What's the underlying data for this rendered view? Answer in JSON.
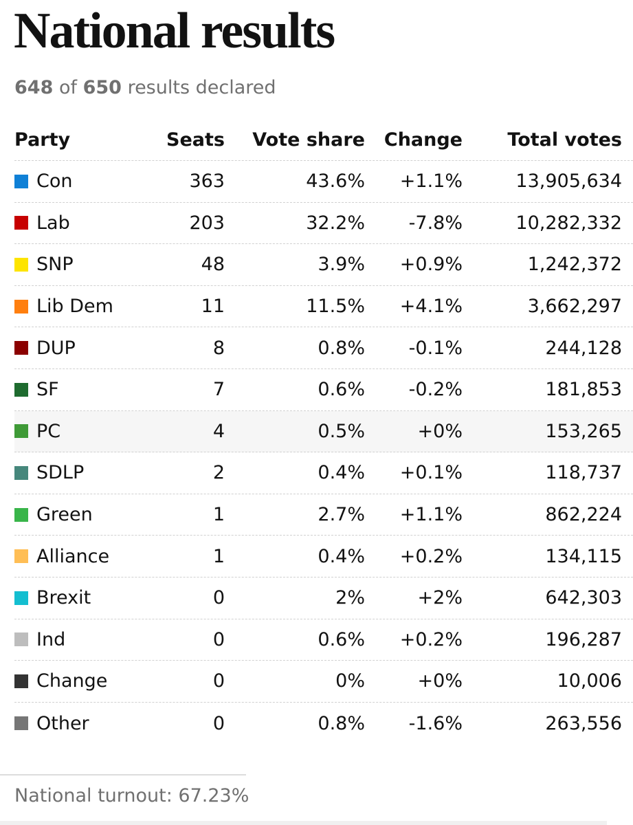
{
  "title": "National results",
  "declared": {
    "count": "648",
    "of_text": "of",
    "total": "650",
    "suffix": "results declared"
  },
  "table": {
    "headers": {
      "party": "Party",
      "seats": "Seats",
      "vote_share": "Vote share",
      "change": "Change",
      "total_votes": "Total votes"
    },
    "rows": [
      {
        "party": "Con",
        "color": "#0f80d6",
        "seats": "363",
        "vote_share": "43.6%",
        "change": "+1.1%",
        "total_votes": "13,905,634"
      },
      {
        "party": "Lab",
        "color": "#c70000",
        "seats": "203",
        "vote_share": "32.2%",
        "change": "-7.8%",
        "total_votes": "10,282,332"
      },
      {
        "party": "SNP",
        "color": "#fde400",
        "seats": "48",
        "vote_share": "3.9%",
        "change": "+0.9%",
        "total_votes": "1,242,372"
      },
      {
        "party": "Lib Dem",
        "color": "#ff7f0f",
        "seats": "11",
        "vote_share": "11.5%",
        "change": "+4.1%",
        "total_votes": "3,662,297"
      },
      {
        "party": "DUP",
        "color": "#8b0000",
        "seats": "8",
        "vote_share": "0.8%",
        "change": "-0.1%",
        "total_votes": "244,128"
      },
      {
        "party": "SF",
        "color": "#1e6b2f",
        "seats": "7",
        "vote_share": "0.6%",
        "change": "-0.2%",
        "total_votes": "181,853"
      },
      {
        "party": "PC",
        "color": "#3f9a37",
        "seats": "4",
        "vote_share": "0.5%",
        "change": "+0%",
        "total_votes": "153,265"
      },
      {
        "party": "SDLP",
        "color": "#46877c",
        "seats": "2",
        "vote_share": "0.4%",
        "change": "+0.1%",
        "total_votes": "118,737"
      },
      {
        "party": "Green",
        "color": "#39b54a",
        "seats": "1",
        "vote_share": "2.7%",
        "change": "+1.1%",
        "total_votes": "862,224"
      },
      {
        "party": "Alliance",
        "color": "#ffbe55",
        "seats": "1",
        "vote_share": "0.4%",
        "change": "+0.2%",
        "total_votes": "134,115"
      },
      {
        "party": "Brexit",
        "color": "#14bed0",
        "seats": "0",
        "vote_share": "2%",
        "change": "+2%",
        "total_votes": "642,303"
      },
      {
        "party": "Ind",
        "color": "#bdbdbd",
        "seats": "0",
        "vote_share": "0.6%",
        "change": "+0.2%",
        "total_votes": "196,287"
      },
      {
        "party": "Change",
        "color": "#333333",
        "seats": "0",
        "vote_share": "0%",
        "change": "+0%",
        "total_votes": "10,006"
      },
      {
        "party": "Other",
        "color": "#767676",
        "seats": "0",
        "vote_share": "0.8%",
        "change": "-1.6%",
        "total_votes": "263,556"
      }
    ]
  },
  "turnout": "National turnout: 67.23%",
  "colors": {
    "text": "#121212",
    "muted": "#707070",
    "divider": "#d0d0d0",
    "highlight_row": "#f6f6f6"
  }
}
